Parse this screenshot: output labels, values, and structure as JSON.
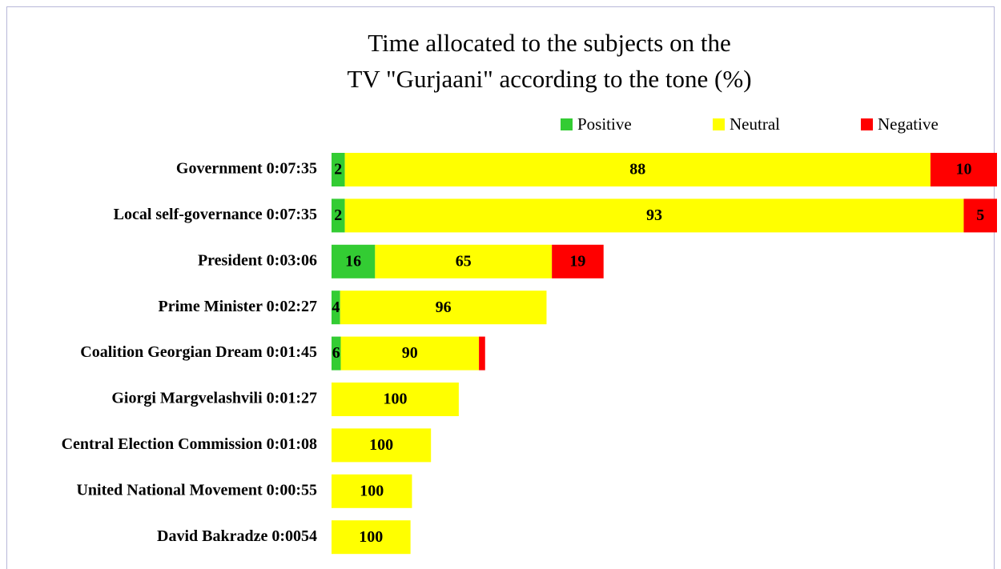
{
  "chart_data": {
    "type": "stacked-bar-horizontal",
    "title": [
      "Time allocated to the subjects on the",
      "TV \"Gurjaani\" according to the tone (%)"
    ],
    "categories": [
      "Government 0:07:35",
      "Local self-governance 0:07:35",
      "President 0:03:06",
      "Prime Minister 0:02:27",
      "Coalition Georgian Dream 0:01:45",
      "Giorgi Margvelashvili 0:01:27",
      "Central Election Commission 0:01:08",
      "United National Movement 0:00:55",
      "David Bakradze 0:0054"
    ],
    "durations": [
      455,
      455,
      186,
      147,
      105,
      87,
      68,
      55,
      54
    ],
    "xlim": [
      0,
      455
    ],
    "series": [
      {
        "name": "Positive",
        "color": "#33cc33",
        "values": [
          2,
          2,
          16,
          4,
          6,
          0,
          0,
          0,
          0
        ],
        "value_labels": [
          "2",
          "2",
          "16",
          "4",
          "6",
          null,
          null,
          null,
          null
        ]
      },
      {
        "name": "Neutral",
        "color": "#ffff00",
        "values": [
          88,
          93,
          65,
          96,
          90,
          100,
          100,
          100,
          100
        ],
        "value_labels": [
          "88",
          "93",
          "65",
          "96",
          "90",
          "100",
          "100",
          "100",
          "100"
        ]
      },
      {
        "name": "Negative",
        "color": "#ff0000",
        "values": [
          10,
          5,
          19,
          0,
          4,
          0,
          0,
          0,
          0
        ],
        "value_labels": [
          "10",
          "5",
          "19",
          null,
          null,
          null,
          null,
          null,
          null
        ]
      }
    ],
    "legend": "top-right"
  }
}
